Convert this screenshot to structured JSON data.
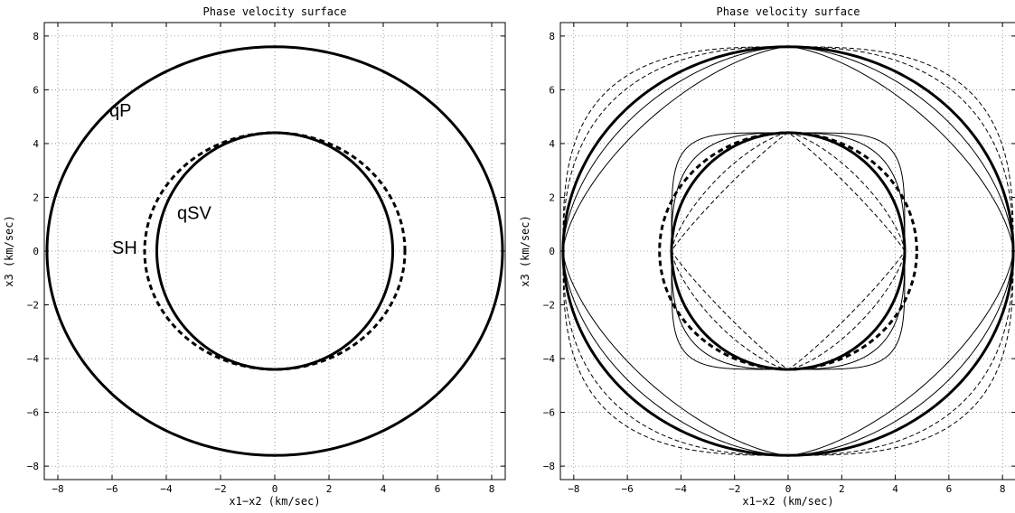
{
  "chart_data": [
    {
      "type": "line",
      "title": "Phase velocity surface",
      "xlabel": "x1−x2 (km/sec)",
      "ylabel": "x3 (km/sec)",
      "xlim": [
        -8.5,
        8.5
      ],
      "ylim": [
        -8.5,
        8.5
      ],
      "xticks": [
        -8,
        -6,
        -4,
        -2,
        0,
        2,
        4,
        6,
        8
      ],
      "yticks": [
        -8,
        -6,
        -4,
        -2,
        0,
        2,
        4,
        6,
        8
      ],
      "xtick_labels": [
        "−8",
        "−6",
        "−4",
        "−2",
        "0",
        "2",
        "4",
        "6",
        "8"
      ],
      "ytick_labels": [
        "−8",
        "−6",
        "−4",
        "−2",
        "0",
        "2",
        "4",
        "6",
        "8"
      ],
      "grid": true,
      "series": [
        {
          "name": "qP",
          "shape": "ellipse",
          "rx": 8.4,
          "ry": 7.6,
          "style": "solid-thick"
        },
        {
          "name": "SH",
          "shape": "ellipse",
          "rx": 4.8,
          "ry": 4.4,
          "style": "dashed-thick"
        },
        {
          "name": "qSV",
          "shape": "ellipse",
          "rx": 4.35,
          "ry": 4.4,
          "style": "solid-thick"
        }
      ],
      "annotations": [
        {
          "text": "qP",
          "x": -6.1,
          "y": 5.0
        },
        {
          "text": "qSV",
          "x": -3.6,
          "y": 1.2
        },
        {
          "text": "SH",
          "x": -6.0,
          "y": -0.1
        }
      ]
    },
    {
      "type": "line",
      "title": "Phase velocity surface",
      "xlabel": "x1−x2 (km/sec)",
      "ylabel": "x3 (km/sec)",
      "xlim": [
        -8.5,
        8.5
      ],
      "ylim": [
        -8.5,
        8.5
      ],
      "xticks": [
        -8,
        -6,
        -4,
        -2,
        0,
        2,
        4,
        6,
        8
      ],
      "yticks": [
        -8,
        -6,
        -4,
        -2,
        0,
        2,
        4,
        6,
        8
      ],
      "xtick_labels": [
        "−8",
        "−6",
        "−4",
        "−2",
        "0",
        "2",
        "4",
        "6",
        "8"
      ],
      "ytick_labels": [
        "−8",
        "−6",
        "−4",
        "−2",
        "0",
        "2",
        "4",
        "6",
        "8"
      ],
      "grid": true,
      "series": [
        {
          "shape": "ellipse",
          "rx": 8.4,
          "ry": 7.6,
          "style": "solid-thick"
        },
        {
          "shape": "ellipse",
          "rx": 4.8,
          "ry": 4.4,
          "style": "dashed-thick"
        },
        {
          "shape": "ellipse",
          "rx": 4.35,
          "ry": 4.4,
          "style": "solid-thick"
        },
        {
          "shape": "superellipse",
          "rx": 8.4,
          "ry": 7.6,
          "n": 1.5,
          "style": "solid-thin"
        },
        {
          "shape": "superellipse",
          "rx": 8.4,
          "ry": 7.6,
          "n": 1.75,
          "style": "solid-thin"
        },
        {
          "shape": "superellipse",
          "rx": 8.4,
          "ry": 7.6,
          "n": 2.5,
          "style": "dashed-thin"
        },
        {
          "shape": "superellipse",
          "rx": 8.4,
          "ry": 7.6,
          "n": 3.0,
          "style": "dashed-thin"
        },
        {
          "shape": "superellipse",
          "rx": 4.35,
          "ry": 4.4,
          "n": 3.0,
          "style": "solid-thin"
        },
        {
          "shape": "superellipse",
          "rx": 4.35,
          "ry": 4.4,
          "n": 5.0,
          "style": "solid-thin"
        },
        {
          "shape": "superellipse",
          "rx": 4.35,
          "ry": 4.4,
          "n": 1.1,
          "style": "dashed-thin"
        },
        {
          "shape": "superellipse",
          "rx": 4.35,
          "ry": 4.4,
          "n": 1.4,
          "style": "dashed-thin"
        }
      ]
    }
  ]
}
